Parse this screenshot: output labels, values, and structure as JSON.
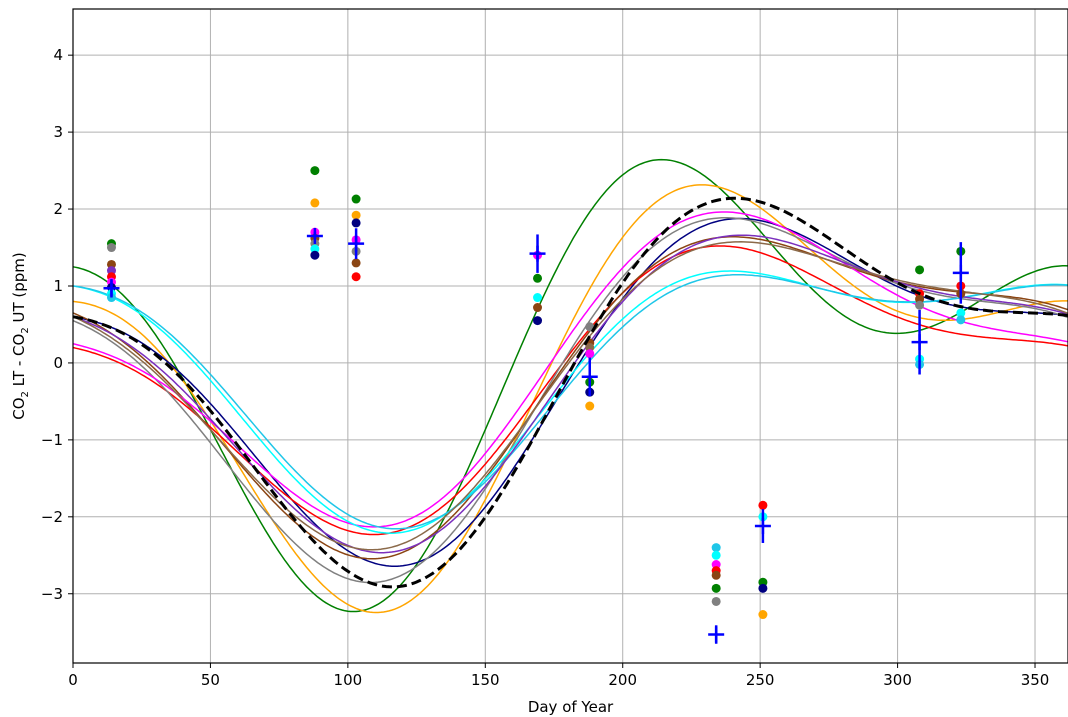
{
  "chart_data": {
    "type": "scatter",
    "xlabel": "Day of Year",
    "ylabel_parts": [
      "CO",
      "2",
      " LT - CO",
      "2",
      " UT (ppm)"
    ],
    "xlim": [
      0,
      362
    ],
    "ylim": [
      -3.9,
      4.6
    ],
    "xticks": [
      0,
      50,
      100,
      150,
      200,
      250,
      300,
      350
    ],
    "yticks": [
      -3,
      -2,
      -1,
      0,
      1,
      2,
      3,
      4
    ],
    "grid": true,
    "colors": {
      "green": "#008000",
      "orange": "#ffa500",
      "navy": "#000080",
      "red": "#ff0000",
      "gray": "#808080",
      "brown": "#8b4513",
      "magenta": "#ff00ff",
      "cyan": "#00ffff",
      "deepskyblue": "#1fc6e8",
      "purple": "#7b2fbe",
      "sienna": "#8b6a4a",
      "blue": "#0000ff",
      "black": "#000000"
    },
    "curves": [
      {
        "color": "green",
        "a0": 0.15,
        "a1": -0.2,
        "b1": -1.95,
        "a2": 1.3,
        "b2": 0.8
      },
      {
        "color": "orange",
        "a0": -0.05,
        "a1": 0.1,
        "b1": -2.1,
        "a2": 0.75,
        "b2": 0.95
      },
      {
        "color": "navy",
        "a0": -0.05,
        "a1": 0.35,
        "b1": -1.85,
        "a2": 0.3,
        "b2": 0.75
      },
      {
        "color": "red",
        "a0": -0.15,
        "a1": 0.0,
        "b1": -1.55,
        "a2": 0.35,
        "b2": 0.55
      },
      {
        "color": "gray",
        "a0": -0.1,
        "a1": 0.15,
        "b1": -2.05,
        "a2": 0.5,
        "b2": 0.6
      },
      {
        "color": "brown",
        "a0": -0.05,
        "a1": 0.25,
        "b1": -1.85,
        "a2": 0.45,
        "b2": 0.5
      },
      {
        "color": "magenta",
        "a0": 0.05,
        "a1": -0.1,
        "b1": -1.7,
        "a2": 0.3,
        "b2": 0.6
      },
      {
        "color": "cyan",
        "a0": 0.0,
        "a1": 0.55,
        "b1": -1.4,
        "a2": 0.45,
        "b2": 0.55
      },
      {
        "color": "deepskyblue",
        "a0": 0.0,
        "a1": 0.6,
        "b1": -1.35,
        "a2": 0.4,
        "b2": 0.55
      },
      {
        "color": "purple",
        "a0": -0.05,
        "a1": 0.3,
        "b1": -1.8,
        "a2": 0.35,
        "b2": 0.55
      },
      {
        "color": "sienna",
        "a0": -0.05,
        "a1": 0.25,
        "b1": -1.8,
        "a2": 0.4,
        "b2": 0.45
      }
    ],
    "mean_curve": {
      "color": "black",
      "dashed": true,
      "a0": -0.05,
      "a1": 0.3,
      "b1": -2.05,
      "a2": 0.35,
      "b2": 0.85
    },
    "points": [
      {
        "x": 14,
        "y": 1.55,
        "c": "green"
      },
      {
        "x": 14,
        "y": 1.5,
        "c": "gray"
      },
      {
        "x": 14,
        "y": 1.28,
        "c": "brown"
      },
      {
        "x": 14,
        "y": 1.2,
        "c": "purple"
      },
      {
        "x": 14,
        "y": 1.12,
        "c": "red"
      },
      {
        "x": 14,
        "y": 1.05,
        "c": "magenta"
      },
      {
        "x": 14,
        "y": 0.98,
        "c": "navy"
      },
      {
        "x": 14,
        "y": 0.9,
        "c": "cyan"
      },
      {
        "x": 14,
        "y": 0.85,
        "c": "deepskyblue"
      },
      {
        "x": 88,
        "y": 2.5,
        "c": "green"
      },
      {
        "x": 88,
        "y": 2.08,
        "c": "orange"
      },
      {
        "x": 88,
        "y": 1.7,
        "c": "magenta"
      },
      {
        "x": 88,
        "y": 1.62,
        "c": "brown"
      },
      {
        "x": 88,
        "y": 1.55,
        "c": "gray"
      },
      {
        "x": 88,
        "y": 1.48,
        "c": "cyan"
      },
      {
        "x": 88,
        "y": 1.4,
        "c": "navy"
      },
      {
        "x": 103,
        "y": 2.13,
        "c": "green"
      },
      {
        "x": 103,
        "y": 1.92,
        "c": "orange"
      },
      {
        "x": 103,
        "y": 1.82,
        "c": "navy"
      },
      {
        "x": 103,
        "y": 1.6,
        "c": "magenta"
      },
      {
        "x": 103,
        "y": 1.45,
        "c": "gray"
      },
      {
        "x": 103,
        "y": 1.3,
        "c": "brown"
      },
      {
        "x": 103,
        "y": 1.12,
        "c": "red"
      },
      {
        "x": 169,
        "y": 1.4,
        "c": "magenta"
      },
      {
        "x": 169,
        "y": 1.1,
        "c": "green"
      },
      {
        "x": 169,
        "y": 0.85,
        "c": "cyan"
      },
      {
        "x": 169,
        "y": 0.72,
        "c": "brown"
      },
      {
        "x": 169,
        "y": 0.55,
        "c": "navy"
      },
      {
        "x": 188,
        "y": 0.47,
        "c": "gray"
      },
      {
        "x": 188,
        "y": 0.26,
        "c": "brown"
      },
      {
        "x": 188,
        "y": 0.2,
        "c": "sienna"
      },
      {
        "x": 188,
        "y": 0.12,
        "c": "magenta"
      },
      {
        "x": 188,
        "y": -0.25,
        "c": "green"
      },
      {
        "x": 188,
        "y": -0.38,
        "c": "navy"
      },
      {
        "x": 188,
        "y": -0.56,
        "c": "orange"
      },
      {
        "x": 234,
        "y": -2.4,
        "c": "deepskyblue"
      },
      {
        "x": 234,
        "y": -2.5,
        "c": "cyan"
      },
      {
        "x": 234,
        "y": -2.62,
        "c": "magenta"
      },
      {
        "x": 234,
        "y": -2.7,
        "c": "red"
      },
      {
        "x": 234,
        "y": -2.76,
        "c": "brown"
      },
      {
        "x": 234,
        "y": -2.93,
        "c": "green"
      },
      {
        "x": 234,
        "y": -3.1,
        "c": "gray"
      },
      {
        "x": 251,
        "y": -1.85,
        "c": "red"
      },
      {
        "x": 251,
        "y": -2.0,
        "c": "cyan"
      },
      {
        "x": 251,
        "y": -2.85,
        "c": "green"
      },
      {
        "x": 251,
        "y": -2.93,
        "c": "navy"
      },
      {
        "x": 251,
        "y": -3.27,
        "c": "orange"
      },
      {
        "x": 308,
        "y": 1.21,
        "c": "green"
      },
      {
        "x": 308,
        "y": 0.9,
        "c": "red"
      },
      {
        "x": 308,
        "y": 0.83,
        "c": "brown"
      },
      {
        "x": 308,
        "y": 0.75,
        "c": "gray"
      },
      {
        "x": 308,
        "y": 0.05,
        "c": "cyan"
      },
      {
        "x": 308,
        "y": -0.02,
        "c": "deepskyblue"
      },
      {
        "x": 323,
        "y": 1.45,
        "c": "green"
      },
      {
        "x": 323,
        "y": 1.0,
        "c": "red"
      },
      {
        "x": 323,
        "y": 0.9,
        "c": "brown"
      },
      {
        "x": 323,
        "y": 0.65,
        "c": "cyan"
      },
      {
        "x": 323,
        "y": 0.56,
        "c": "deepskyblue"
      }
    ],
    "mean_markers": [
      {
        "x": 14,
        "y": 0.97,
        "err": 0.12
      },
      {
        "x": 88,
        "y": 1.65,
        "err": 0.05
      },
      {
        "x": 103,
        "y": 1.55,
        "err": 0.2
      },
      {
        "x": 169,
        "y": 1.42,
        "err": 0.25
      },
      {
        "x": 188,
        "y": -0.18,
        "err": 0.25
      },
      {
        "x": 234,
        "y": -3.53,
        "err": 0.12
      },
      {
        "x": 251,
        "y": -2.12,
        "err": 0.22
      },
      {
        "x": 308,
        "y": 0.27,
        "err": 0.42
      },
      {
        "x": 323,
        "y": 1.17,
        "err": 0.4
      }
    ]
  }
}
